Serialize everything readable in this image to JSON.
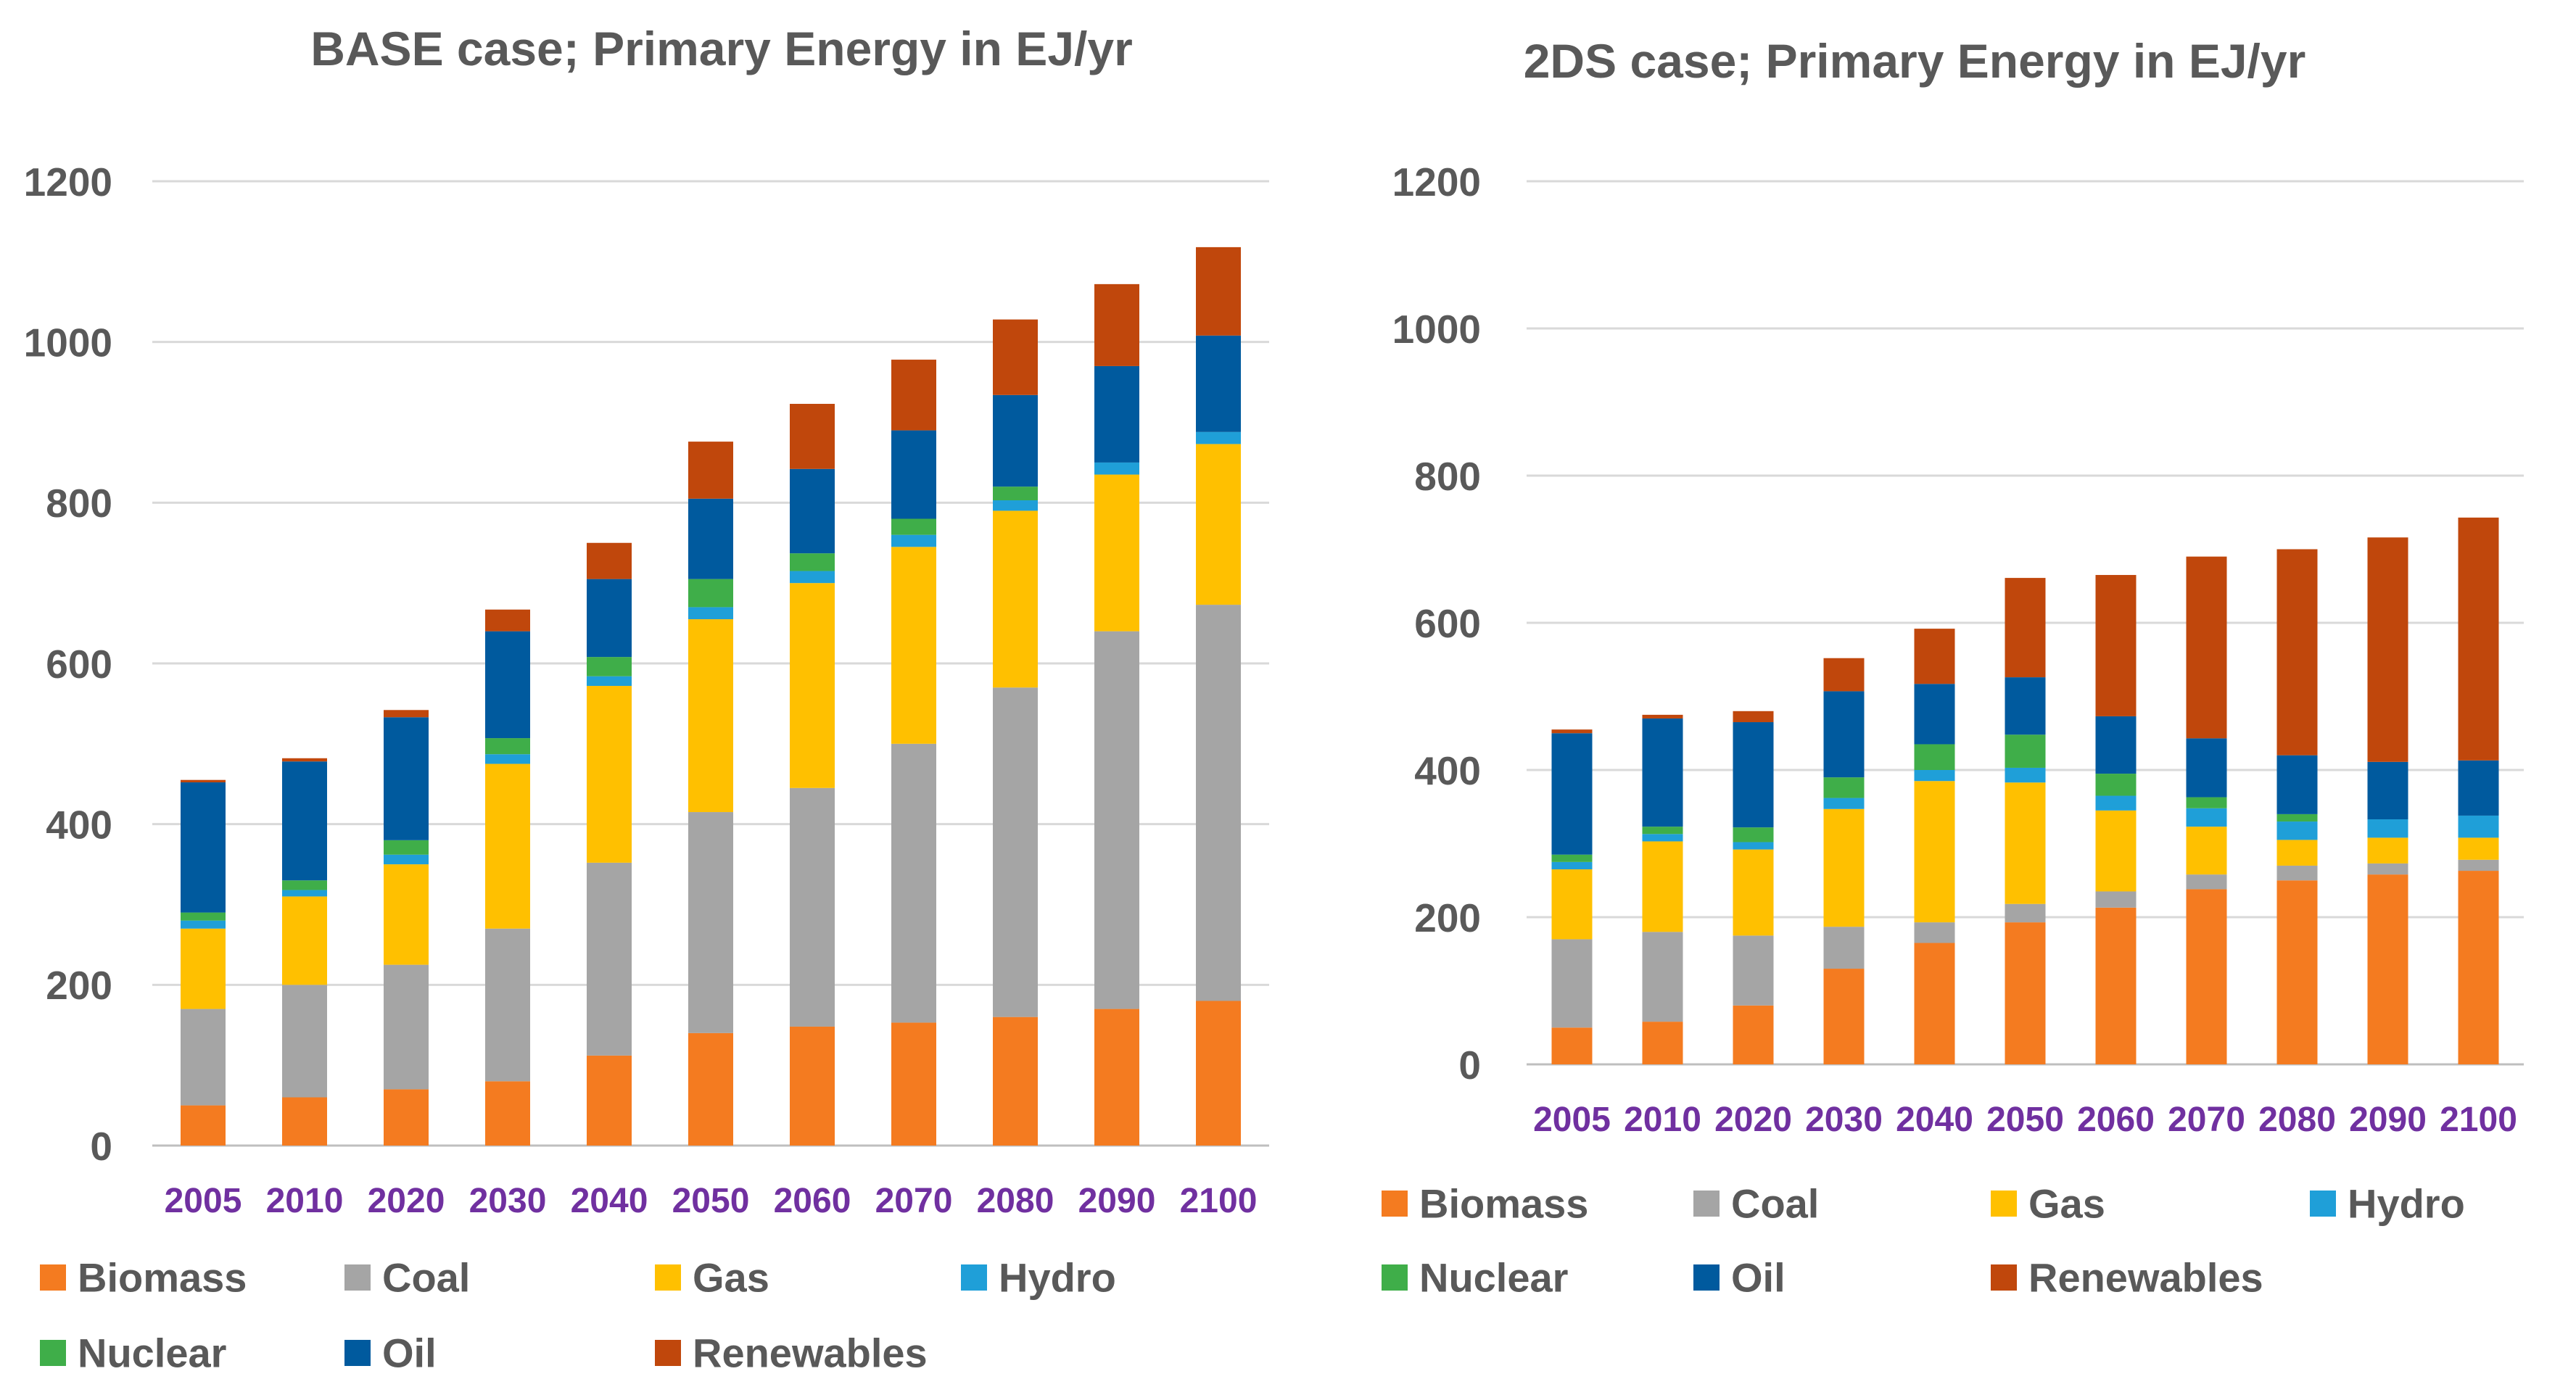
{
  "chart_data": [
    {
      "type": "bar",
      "stacked": true,
      "title": "BASE case; Primary Energy in EJ/yr",
      "xlabel": "",
      "ylabel": "",
      "ylim": [
        0,
        1200
      ],
      "yticks": [
        0,
        200,
        400,
        600,
        800,
        1000,
        1200
      ],
      "grid": true,
      "legend_position": "bottom",
      "categories": [
        "2005",
        "2010",
        "2020",
        "2030",
        "2040",
        "2050",
        "2060",
        "2070",
        "2080",
        "2090",
        "2100"
      ],
      "series": [
        {
          "name": "Biomass",
          "color": "#F47B20",
          "values": [
            50,
            60,
            70,
            80,
            112,
            140,
            148,
            153,
            160,
            170,
            180
          ]
        },
        {
          "name": "Coal",
          "color": "#A5A5A5",
          "values": [
            120,
            140,
            155,
            190,
            240,
            275,
            297,
            347,
            410,
            470,
            493
          ]
        },
        {
          "name": "Gas",
          "color": "#FFC000",
          "values": [
            100,
            110,
            125,
            205,
            220,
            240,
            255,
            245,
            220,
            195,
            200
          ]
        },
        {
          "name": "Hydro",
          "color": "#1F9FD8",
          "values": [
            10,
            8,
            12,
            12,
            12,
            15,
            15,
            15,
            13,
            15,
            15
          ]
        },
        {
          "name": "Nuclear",
          "color": "#3FAE49",
          "values": [
            10,
            12,
            18,
            20,
            24,
            35,
            22,
            20,
            17,
            0,
            0
          ]
        },
        {
          "name": "Oil",
          "color": "#005A9E",
          "values": [
            162,
            148,
            153,
            133,
            97,
            100,
            105,
            110,
            114,
            120,
            120
          ]
        },
        {
          "name": "Renewables",
          "color": "#C0470C",
          "values": [
            3,
            4,
            9,
            27,
            45,
            71,
            81,
            88,
            94,
            102,
            110
          ]
        }
      ]
    },
    {
      "type": "bar",
      "stacked": true,
      "title": "2DS case; Primary Energy in EJ/yr",
      "xlabel": "",
      "ylabel": "",
      "ylim": [
        0,
        1200
      ],
      "yticks": [
        0,
        200,
        400,
        600,
        800,
        1000,
        1200
      ],
      "grid": true,
      "legend_position": "bottom",
      "categories": [
        "2005",
        "2010",
        "2020",
        "2030",
        "2040",
        "2050",
        "2060",
        "2070",
        "2080",
        "2090",
        "2100"
      ],
      "series": [
        {
          "name": "Biomass",
          "color": "#F47B20",
          "values": [
            50,
            58,
            80,
            130,
            165,
            193,
            213,
            238,
            250,
            258,
            263
          ]
        },
        {
          "name": "Coal",
          "color": "#A5A5A5",
          "values": [
            120,
            122,
            95,
            57,
            28,
            25,
            22,
            20,
            20,
            15,
            15
          ]
        },
        {
          "name": "Gas",
          "color": "#FFC000",
          "values": [
            95,
            123,
            117,
            160,
            192,
            165,
            110,
            65,
            35,
            35,
            30
          ]
        },
        {
          "name": "Hydro",
          "color": "#1F9FD8",
          "values": [
            10,
            10,
            10,
            15,
            15,
            20,
            20,
            25,
            25,
            25,
            30
          ]
        },
        {
          "name": "Nuclear",
          "color": "#3FAE49",
          "values": [
            10,
            10,
            20,
            28,
            35,
            45,
            30,
            15,
            10,
            0,
            0
          ]
        },
        {
          "name": "Oil",
          "color": "#005A9E",
          "values": [
            165,
            147,
            143,
            117,
            82,
            78,
            78,
            80,
            80,
            78,
            75
          ]
        },
        {
          "name": "Renewables",
          "color": "#C0470C",
          "values": [
            5,
            5,
            15,
            45,
            75,
            135,
            192,
            247,
            280,
            305,
            330
          ]
        }
      ]
    }
  ]
}
